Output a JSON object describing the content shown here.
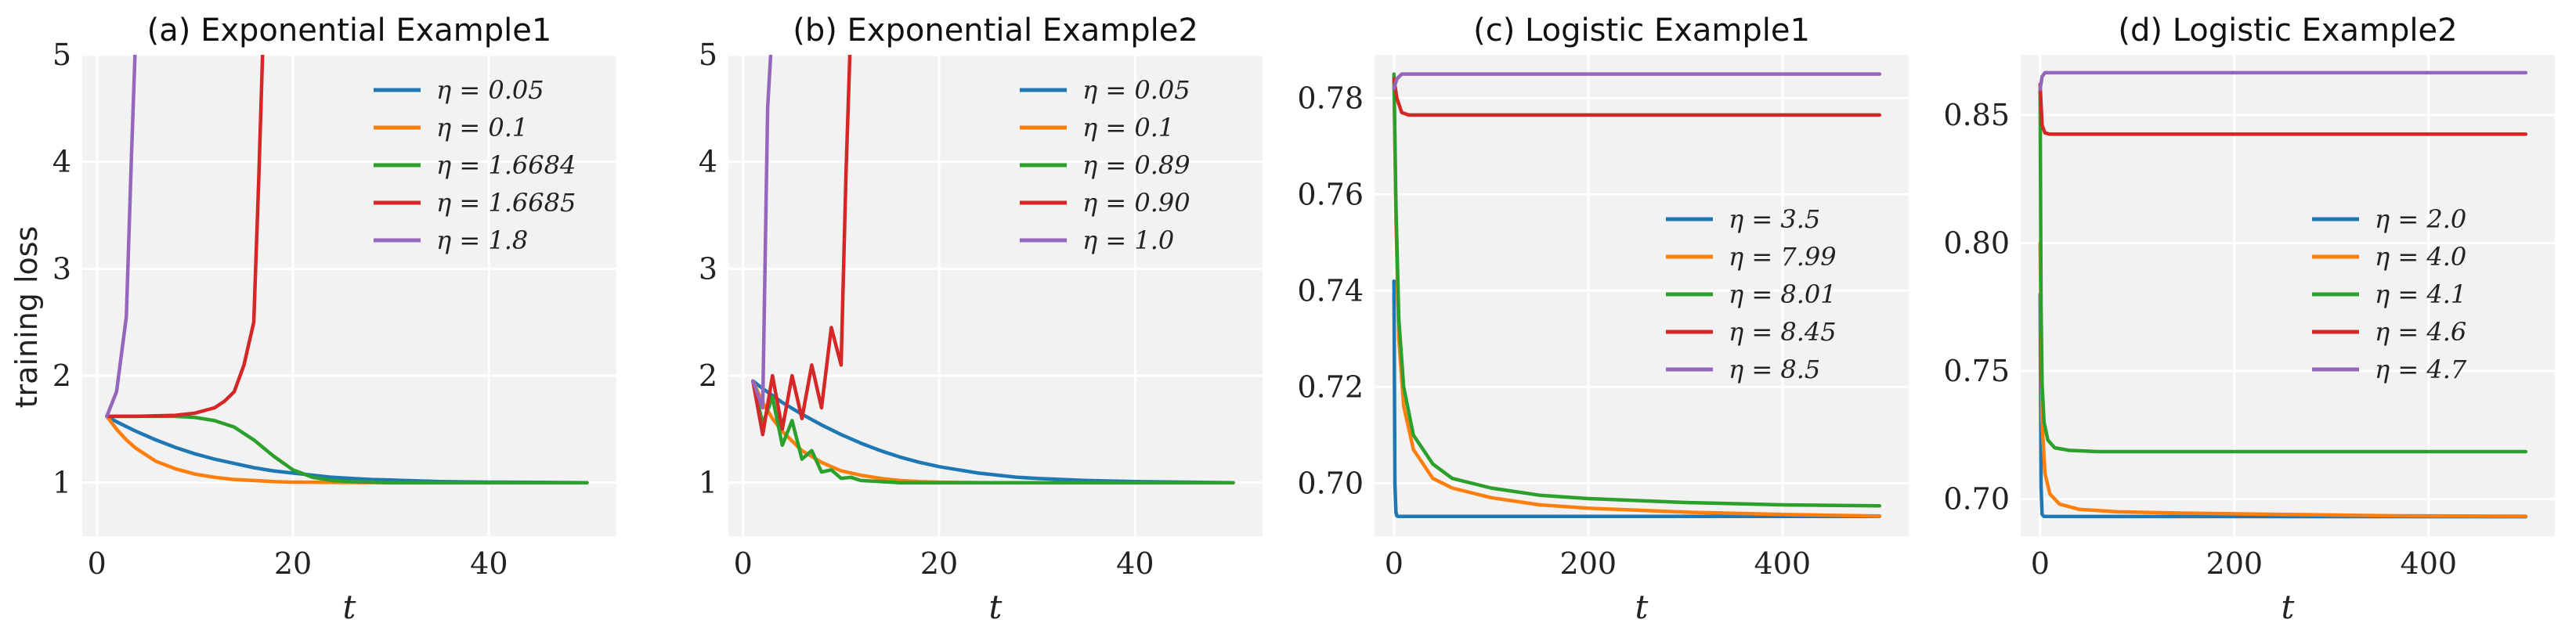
{
  "ylabel": "training loss",
  "chart_data": [
    {
      "type": "line",
      "title": "(a) Exponential Example1",
      "xlabel": "t",
      "xlim": [
        -1.5,
        53
      ],
      "ylim": [
        0.5,
        5
      ],
      "xticks": [
        0,
        20,
        40
      ],
      "yticks": [
        1,
        2,
        3,
        4,
        5
      ],
      "legend_position": "top-right",
      "series": [
        {
          "name": "η = 0.05",
          "color": "#1f77b4",
          "x": [
            1,
            2,
            4,
            6,
            8,
            10,
            12,
            14,
            16,
            18,
            20,
            22,
            24,
            26,
            28,
            30,
            35,
            40,
            45,
            50
          ],
          "y": [
            1.62,
            1.57,
            1.48,
            1.4,
            1.33,
            1.27,
            1.22,
            1.18,
            1.14,
            1.11,
            1.09,
            1.07,
            1.05,
            1.04,
            1.03,
            1.025,
            1.01,
            1.005,
            1.003,
            1.0
          ]
        },
        {
          "name": "η = 0.1",
          "color": "#ff7f0e",
          "x": [
            1,
            2,
            3,
            4,
            6,
            8,
            10,
            12,
            14,
            16,
            18,
            20,
            25,
            30,
            40,
            50
          ],
          "y": [
            1.62,
            1.5,
            1.4,
            1.32,
            1.2,
            1.13,
            1.08,
            1.05,
            1.03,
            1.02,
            1.01,
            1.005,
            1.002,
            1.0,
            1.0,
            1.0
          ]
        },
        {
          "name": "η = 1.6684",
          "color": "#2ca02c",
          "x": [
            1,
            4,
            8,
            10,
            12,
            14,
            16,
            18,
            20,
            22,
            24,
            26,
            30,
            35,
            40,
            50
          ],
          "y": [
            1.62,
            1.62,
            1.62,
            1.61,
            1.58,
            1.52,
            1.4,
            1.25,
            1.12,
            1.05,
            1.02,
            1.01,
            1.0,
            1.0,
            1.0,
            1.0
          ]
        },
        {
          "name": "η = 1.6685",
          "color": "#d62728",
          "x": [
            1,
            4,
            8,
            10,
            12,
            13,
            14,
            15,
            16,
            16.5,
            17
          ],
          "y": [
            1.62,
            1.62,
            1.63,
            1.65,
            1.7,
            1.76,
            1.85,
            2.1,
            2.5,
            3.8,
            5.3
          ]
        },
        {
          "name": "η = 1.8",
          "color": "#9467bd",
          "x": [
            1,
            2,
            3,
            3.5,
            4
          ],
          "y": [
            1.62,
            1.85,
            2.55,
            4.0,
            5.3
          ]
        }
      ]
    },
    {
      "type": "line",
      "title": "(b) Exponential Example2",
      "xlabel": "t",
      "xlim": [
        -1.5,
        53
      ],
      "ylim": [
        0.5,
        5
      ],
      "xticks": [
        0,
        20,
        40
      ],
      "yticks": [
        1,
        2,
        3,
        4,
        5
      ],
      "legend_position": "top-right",
      "series": [
        {
          "name": "η = 0.05",
          "color": "#1f77b4",
          "x": [
            1,
            2,
            4,
            6,
            8,
            10,
            12,
            14,
            16,
            18,
            20,
            22,
            24,
            26,
            28,
            30,
            35,
            40,
            45,
            50
          ],
          "y": [
            1.95,
            1.88,
            1.75,
            1.64,
            1.54,
            1.45,
            1.37,
            1.3,
            1.24,
            1.19,
            1.15,
            1.12,
            1.09,
            1.07,
            1.05,
            1.04,
            1.02,
            1.01,
            1.005,
            1.0
          ]
        },
        {
          "name": "η = 0.1",
          "color": "#ff7f0e",
          "x": [
            1,
            2,
            3,
            4,
            6,
            8,
            10,
            12,
            14,
            16,
            18,
            20,
            25,
            30,
            40,
            50
          ],
          "y": [
            1.95,
            1.75,
            1.6,
            1.48,
            1.3,
            1.19,
            1.11,
            1.07,
            1.04,
            1.02,
            1.01,
            1.005,
            1.0,
            1.0,
            1.0,
            1.0
          ]
        },
        {
          "name": "η = 0.89",
          "color": "#2ca02c",
          "x": [
            1,
            2,
            3,
            4,
            5,
            6,
            7,
            8,
            9,
            10,
            11,
            12,
            14,
            16,
            20,
            30,
            40,
            50
          ],
          "y": [
            1.95,
            1.55,
            1.8,
            1.35,
            1.58,
            1.22,
            1.3,
            1.1,
            1.12,
            1.04,
            1.05,
            1.02,
            1.01,
            1.0,
            1.0,
            1.0,
            1.0,
            1.0
          ]
        },
        {
          "name": "η = 0.90",
          "color": "#d62728",
          "x": [
            1,
            2,
            3,
            4,
            5,
            6,
            7,
            8,
            9,
            10,
            10.5,
            11
          ],
          "y": [
            1.95,
            1.45,
            2.0,
            1.5,
            2.0,
            1.6,
            2.1,
            1.7,
            2.45,
            2.1,
            3.9,
            5.3
          ]
        },
        {
          "name": "η = 1.0",
          "color": "#9467bd",
          "x": [
            1,
            2,
            2.5,
            3
          ],
          "y": [
            1.95,
            1.7,
            4.5,
            5.3
          ]
        }
      ]
    },
    {
      "type": "line",
      "title": "(c) Logistic Example1",
      "xlabel": "t",
      "xlim": [
        -20,
        530
      ],
      "ylim": [
        0.689,
        0.789
      ],
      "xticks": [
        0,
        200,
        400
      ],
      "yticks": [
        0.7,
        0.72,
        0.74,
        0.76,
        0.78
      ],
      "ytick_labels": [
        "0.70",
        "0.72",
        "0.74",
        "0.76",
        "0.78"
      ],
      "legend_position": "center-right",
      "series": [
        {
          "name": "η = 3.5",
          "color": "#1f77b4",
          "x": [
            0,
            1,
            2,
            3,
            5,
            500
          ],
          "y": [
            0.742,
            0.7,
            0.694,
            0.6932,
            0.6931,
            0.6931
          ]
        },
        {
          "name": "η = 7.99",
          "color": "#ff7f0e",
          "x": [
            0,
            2,
            5,
            10,
            20,
            40,
            60,
            100,
            150,
            200,
            300,
            400,
            500
          ],
          "y": [
            0.784,
            0.755,
            0.73,
            0.716,
            0.707,
            0.701,
            0.699,
            0.697,
            0.6955,
            0.6948,
            0.694,
            0.6935,
            0.6932
          ]
        },
        {
          "name": "η = 8.01",
          "color": "#2ca02c",
          "x": [
            0,
            2,
            5,
            10,
            20,
            40,
            60,
            100,
            150,
            200,
            300,
            400,
            500
          ],
          "y": [
            0.785,
            0.758,
            0.734,
            0.72,
            0.71,
            0.704,
            0.701,
            0.699,
            0.6975,
            0.6968,
            0.696,
            0.6955,
            0.6953
          ]
        },
        {
          "name": "η = 8.45",
          "color": "#d62728",
          "x": [
            0,
            3,
            8,
            15,
            500
          ],
          "y": [
            0.784,
            0.78,
            0.777,
            0.7765,
            0.7765
          ]
        },
        {
          "name": "η = 8.5",
          "color": "#9467bd",
          "x": [
            0,
            3,
            8,
            500
          ],
          "y": [
            0.782,
            0.784,
            0.785,
            0.785
          ]
        }
      ]
    },
    {
      "type": "line",
      "title": "(d) Logistic Example2",
      "xlabel": "t",
      "xlim": [
        -20,
        530
      ],
      "ylim": [
        0.6855,
        0.8735
      ],
      "xticks": [
        0,
        200,
        400
      ],
      "yticks": [
        0.7,
        0.75,
        0.8,
        0.85
      ],
      "ytick_labels": [
        "0.70",
        "0.75",
        "0.80",
        "0.85"
      ],
      "legend_position": "center-right",
      "series": [
        {
          "name": "η = 2.0",
          "color": "#1f77b4",
          "x": [
            0,
            1,
            2,
            4,
            500
          ],
          "y": [
            0.78,
            0.705,
            0.694,
            0.6932,
            0.6931
          ]
        },
        {
          "name": "η = 4.0",
          "color": "#ff7f0e",
          "x": [
            0,
            2,
            5,
            10,
            20,
            40,
            80,
            150,
            250,
            350,
            500
          ],
          "y": [
            0.8,
            0.73,
            0.71,
            0.702,
            0.698,
            0.696,
            0.695,
            0.6945,
            0.694,
            0.6935,
            0.6933
          ]
        },
        {
          "name": "η = 4.1",
          "color": "#2ca02c",
          "x": [
            0,
            1,
            2,
            4,
            8,
            15,
            30,
            60,
            500
          ],
          "y": [
            0.86,
            0.775,
            0.745,
            0.73,
            0.723,
            0.72,
            0.719,
            0.7185,
            0.7185
          ]
        },
        {
          "name": "η = 4.6",
          "color": "#d62728",
          "x": [
            0,
            2,
            5,
            10,
            500
          ],
          "y": [
            0.862,
            0.846,
            0.843,
            0.8425,
            0.8425
          ]
        },
        {
          "name": "η = 4.7",
          "color": "#9467bd",
          "x": [
            0,
            2,
            5,
            500
          ],
          "y": [
            0.86,
            0.865,
            0.8665,
            0.8665
          ]
        }
      ]
    }
  ]
}
